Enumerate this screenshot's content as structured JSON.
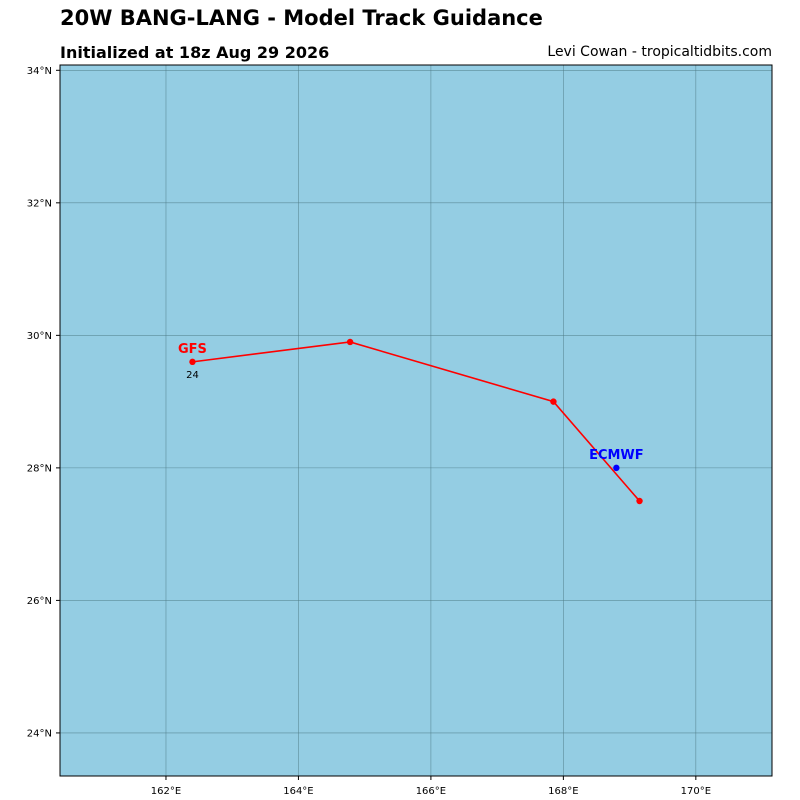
{
  "header": {
    "title": "20W BANG-LANG - Model Track Guidance",
    "subtitle": "Initialized at 18z Aug 29 2026",
    "credit": "Levi Cowan - tropicaltidbits.com"
  },
  "map": {
    "ocean_color": "#94cde3",
    "grid_color": "#4d7a86",
    "lon_range": [
      160.4,
      171.15
    ],
    "lat_range": [
      23.35,
      34.08
    ],
    "lon_ticks": [
      {
        "value": 162,
        "label": "162°E"
      },
      {
        "value": 164,
        "label": "164°E"
      },
      {
        "value": 166,
        "label": "166°E"
      },
      {
        "value": 168,
        "label": "168°E"
      },
      {
        "value": 170,
        "label": "170°E"
      }
    ],
    "lat_ticks": [
      {
        "value": 24,
        "label": "24°N"
      },
      {
        "value": 26,
        "label": "26°N"
      },
      {
        "value": 28,
        "label": "28°N"
      },
      {
        "value": 30,
        "label": "30°N"
      },
      {
        "value": 32,
        "label": "32°N"
      },
      {
        "value": 34,
        "label": "34°N"
      }
    ]
  },
  "tracks": [
    {
      "name": "GFS",
      "color": "#ff0000",
      "points": [
        {
          "lon": 162.4,
          "lat": 29.6
        },
        {
          "lon": 164.78,
          "lat": 29.9
        },
        {
          "lon": 167.85,
          "lat": 29.0
        },
        {
          "lon": 169.15,
          "lat": 27.5
        }
      ],
      "hour_label": {
        "text": "24",
        "at_point": 0
      }
    },
    {
      "name": "ECMWF",
      "color": "#0000ff",
      "points": [
        {
          "lon": 168.8,
          "lat": 28.0
        }
      ]
    }
  ]
}
